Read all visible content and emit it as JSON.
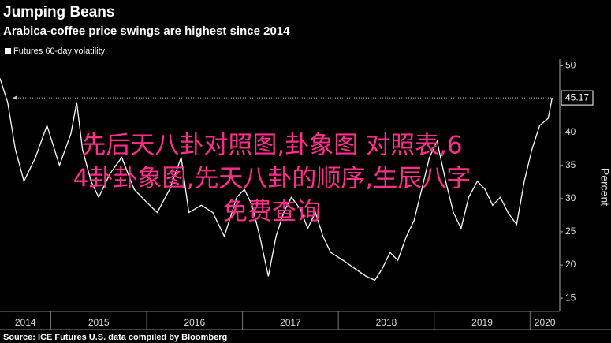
{
  "chart_data": {
    "type": "line",
    "title": "Jumping Beans",
    "subtitle": "Arabica-coffee price swings are highest since 2014",
    "y_label": "Percent",
    "source": "Source: ICE Futures U.S. data compiled by Bloomberg",
    "overlay_text": [
      "先后天八卦对照图,卦象图 对照表,6",
      "4卦卦象图,先天八卦的顺序,生辰八字",
      "免费查询"
    ],
    "x": [
      2014.47,
      2014.55,
      2014.63,
      2014.72,
      2014.84,
      2014.96,
      2015.09,
      2015.21,
      2015.27,
      2015.33,
      2015.42,
      2015.5,
      2015.62,
      2015.74,
      2015.87,
      2015.99,
      2016.11,
      2016.24,
      2016.36,
      2016.44,
      2016.57,
      2016.69,
      2016.81,
      2016.94,
      2017.02,
      2017.1,
      2017.18,
      2017.27,
      2017.35,
      2017.43,
      2017.51,
      2017.6,
      2017.68,
      2017.76,
      2017.84,
      2017.92,
      2018.05,
      2018.17,
      2018.29,
      2018.38,
      2018.46,
      2018.54,
      2018.62,
      2018.71,
      2018.79,
      2018.87,
      2018.95,
      2019.03,
      2019.12,
      2019.2,
      2019.28,
      2019.36,
      2019.45,
      2019.53,
      2019.61,
      2019.69,
      2019.77,
      2019.86,
      2019.94,
      2020.02,
      2020.1,
      2020.19,
      2020.23
    ],
    "series": [
      {
        "name": "Futures 60-day volatility",
        "color": "#ffffff",
        "values": [
          48.1,
          44.5,
          37.4,
          32.6,
          36.2,
          41.0,
          35.0,
          39.8,
          44.5,
          37.4,
          32.6,
          30.2,
          33.8,
          36.2,
          31.4,
          29.6,
          27.9,
          31.4,
          36.2,
          27.9,
          29.0,
          27.9,
          24.3,
          30.2,
          31.4,
          29.0,
          24.3,
          18.3,
          24.3,
          27.9,
          30.2,
          28.5,
          25.5,
          27.9,
          24.3,
          21.9,
          20.7,
          19.5,
          18.3,
          17.7,
          19.5,
          21.9,
          20.7,
          24.3,
          26.7,
          31.4,
          36.2,
          38.6,
          32.6,
          27.9,
          25.5,
          30.2,
          32.6,
          31.4,
          29.0,
          30.2,
          27.9,
          26.1,
          32.6,
          37.4,
          41.0,
          42.1,
          45.17
        ]
      }
    ],
    "xlim": [
      2014.47,
      2020.31
    ],
    "xticks": [
      2014,
      2015,
      2016,
      2017,
      2018,
      2019,
      2020
    ],
    "ylim": [
      13,
      51
    ],
    "yticks": [
      15,
      20,
      25,
      30,
      35,
      40,
      45,
      50
    ],
    "grid": false
  }
}
